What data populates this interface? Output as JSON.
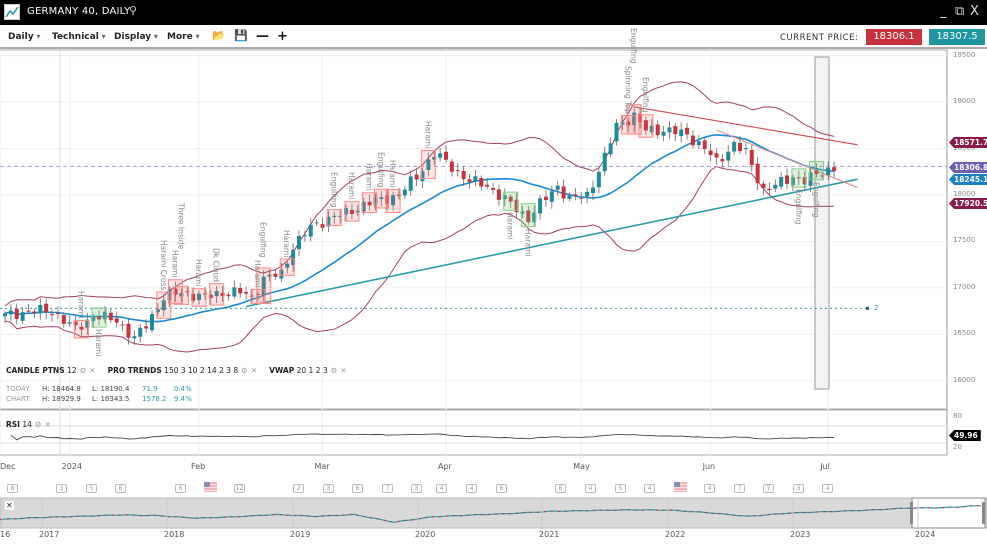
{
  "window": {
    "title": "GERMANY 40, DAILY",
    "minimize": "_",
    "popout": "⧉",
    "close": "X"
  },
  "toolbar": {
    "menus": [
      "Daily",
      "Technical",
      "Display",
      "More"
    ],
    "current_price_label": "CURRENT PRICE:",
    "bid": "18306.1",
    "ask": "18307.5"
  },
  "indicators": {
    "candle": {
      "name": "CANDLE PTNS",
      "params": "12"
    },
    "trends": {
      "name": "PRO TRENDS",
      "params": "150 3 10 2 14 2 3 8"
    },
    "vwap": {
      "name": "VWAP",
      "params": "20 1 2 3"
    },
    "rsi": {
      "name": "RSI",
      "params": "14",
      "value": "49.96"
    }
  },
  "stats": {
    "today": {
      "label": "TODAY:",
      "high": "H: 18464.8",
      "low": "L: 18190.4",
      "change": "71.9",
      "pct": "0.4%"
    },
    "chart": {
      "label": "CHART:",
      "high": "H: 18929.9",
      "low": "L: 16343.5",
      "change": "1578.2",
      "pct": "9.4%"
    }
  },
  "price_axis": [
    "19500",
    "19000",
    "18500",
    "18000",
    "17500",
    "17000",
    "16500",
    "16000"
  ],
  "price_tags": [
    {
      "value": "18571.7",
      "color": "#8a1a4a"
    },
    {
      "value": "18306.8",
      "color": "#6a5fb0"
    },
    {
      "value": "18245.1",
      "color": "#1a7fc4"
    },
    {
      "value": "17920.5",
      "color": "#8a1a4a"
    }
  ],
  "rsi_axis": [
    "80",
    "20"
  ],
  "level_marker": "2",
  "date_axis": [
    {
      "label": "Dec",
      "date": "2023-12-01"
    },
    {
      "label": "2024",
      "date": "2024-01-02"
    },
    {
      "label": "Feb",
      "date": "2024-02-01"
    },
    {
      "label": "Mar",
      "date": "2024-03-01"
    },
    {
      "label": "Apr",
      "date": "2024-04-01"
    },
    {
      "label": "May",
      "date": "2024-05-02"
    },
    {
      "label": "Jun",
      "date": "2024-06-03"
    },
    {
      "label": "Jul",
      "date": "2024-07-01"
    }
  ],
  "events": [
    "8",
    "3",
    "5",
    "6",
    "6",
    "flag",
    "12",
    "2",
    "3",
    "6",
    "7",
    "3",
    "4",
    "4",
    "6",
    "6",
    "4",
    "5",
    "4",
    "flag",
    "4",
    "7",
    "7",
    "3",
    "4"
  ],
  "navigator": {
    "years": [
      "16",
      "2017",
      "2018",
      "2019",
      "2020",
      "2021",
      "2022",
      "2023",
      "2024"
    ],
    "series": [
      10500,
      11600,
      12200,
      13000,
      12600,
      11200,
      12000,
      13200,
      12200,
      13200,
      9000,
      12000,
      13000,
      13800,
      15000,
      15400,
      15800,
      15600,
      14200,
      12200,
      14000,
      14800,
      15600,
      16700,
      17000,
      18300
    ]
  },
  "colors": {
    "up": "#1f8a9a",
    "down": "#c8323c",
    "ma": "#1a8ad4",
    "bands": "#a0406a",
    "trend_support": "#2a9da8",
    "trend_resist": "#d04a50"
  },
  "chart_data": {
    "type": "candlestick",
    "start_date": "2023-12-18",
    "close_anchors": [
      [
        "2023-12-18",
        16700
      ],
      [
        "2023-12-22",
        16750
      ],
      [
        "2023-12-28",
        16750
      ],
      [
        "2024-01-03",
        16550
      ],
      [
        "2024-01-08",
        16700
      ],
      [
        "2024-01-12",
        16650
      ],
      [
        "2024-01-17",
        16450
      ],
      [
        "2024-01-19",
        16600
      ],
      [
        "2024-01-24",
        16900
      ],
      [
        "2024-01-29",
        16950
      ],
      [
        "2024-02-02",
        16900
      ],
      [
        "2024-02-07",
        16950
      ],
      [
        "2024-02-12",
        16950
      ],
      [
        "2024-02-14",
        16900
      ],
      [
        "2024-02-16",
        17100
      ],
      [
        "2024-02-21",
        17150
      ],
      [
        "2024-02-23",
        17450
      ],
      [
        "2024-02-28",
        17650
      ],
      [
        "2024-03-04",
        17750
      ],
      [
        "2024-03-07",
        17800
      ],
      [
        "2024-03-12",
        17900
      ],
      [
        "2024-03-15",
        17950
      ],
      [
        "2024-03-20",
        18000
      ],
      [
        "2024-03-25",
        18200
      ],
      [
        "2024-03-28",
        18450
      ],
      [
        "2024-04-02",
        18300
      ],
      [
        "2024-04-05",
        18150
      ],
      [
        "2024-04-10",
        18100
      ],
      [
        "2024-04-15",
        17950
      ],
      [
        "2024-04-19",
        17750
      ],
      [
        "2024-04-23",
        17900
      ],
      [
        "2024-04-26",
        18100
      ],
      [
        "2024-04-30",
        17950
      ],
      [
        "2024-05-03",
        18000
      ],
      [
        "2024-05-08",
        18400
      ],
      [
        "2024-05-10",
        18750
      ],
      [
        "2024-05-15",
        18850
      ],
      [
        "2024-05-17",
        18700
      ],
      [
        "2024-05-22",
        18700
      ],
      [
        "2024-05-28",
        18650
      ],
      [
        "2024-05-31",
        18500
      ],
      [
        "2024-06-04",
        18350
      ],
      [
        "2024-06-07",
        18550
      ],
      [
        "2024-06-11",
        18450
      ],
      [
        "2024-06-14",
        18050
      ],
      [
        "2024-06-18",
        18100
      ],
      [
        "2024-06-21",
        18200
      ],
      [
        "2024-06-25",
        18150
      ],
      [
        "2024-06-28",
        18250
      ],
      [
        "2024-07-02",
        18300
      ]
    ],
    "current_price": 18306.8,
    "horizontal_level": 16780,
    "trendlines": [
      {
        "kind": "support",
        "from": [
          "2024-02-13",
          16800
        ],
        "to": [
          "2024-07-08",
          18170
        ]
      },
      {
        "kind": "resist",
        "from": [
          "2024-05-15",
          18950
        ],
        "to": [
          "2024-07-08",
          18540
        ]
      },
      {
        "kind": "resist",
        "from": [
          "2024-06-04",
          18700
        ],
        "to": [
          "2024-07-08",
          18080
        ]
      }
    ],
    "patterns": [
      {
        "date": "2024-01-04",
        "text": "Harami",
        "bull": false
      },
      {
        "date": "2024-01-09",
        "text": "Harami",
        "bull": true
      },
      {
        "date": "2024-01-24",
        "text": "Harami Cross",
        "bull": false
      },
      {
        "date": "2024-01-26",
        "text": "Harami",
        "bull": false
      },
      {
        "date": "2024-01-29",
        "text": "Three Inside",
        "bull": false
      },
      {
        "date": "2024-02-01",
        "text": "Harami",
        "bull": false
      },
      {
        "date": "2024-02-06",
        "text": "Dk Cloud",
        "bull": false
      },
      {
        "date": "2024-02-15",
        "text": "Harami",
        "bull": false
      },
      {
        "date": "2024-02-16",
        "text": "Engulfing",
        "bull": false
      },
      {
        "date": "2024-02-22",
        "text": "Harami",
        "bull": false
      },
      {
        "date": "2024-03-05",
        "text": "Engulfing",
        "bull": false
      },
      {
        "date": "2024-03-08",
        "text": "Harami",
        "bull": false
      },
      {
        "date": "2024-03-13",
        "text": "Harami",
        "bull": false
      },
      {
        "date": "2024-03-15",
        "text": "Engulfing",
        "bull": false
      },
      {
        "date": "2024-03-19",
        "text": "Harami",
        "bull": false
      },
      {
        "date": "2024-03-27",
        "text": "Harami",
        "bull": false
      },
      {
        "date": "2024-04-16",
        "text": "Harami",
        "bull": true
      },
      {
        "date": "2024-04-19",
        "text": "Harami",
        "bull": true
      },
      {
        "date": "2024-05-14",
        "text": "Spinning Top",
        "bull": false
      },
      {
        "date": "2024-05-15",
        "text": "Engulfing",
        "bull": false
      },
      {
        "date": "2024-05-17",
        "text": "Engulfing",
        "bull": false
      },
      {
        "date": "2024-06-24",
        "text": "Engulfing",
        "bull": true
      },
      {
        "date": "2024-06-27",
        "text": "Engulfing",
        "bull": true
      }
    ]
  }
}
